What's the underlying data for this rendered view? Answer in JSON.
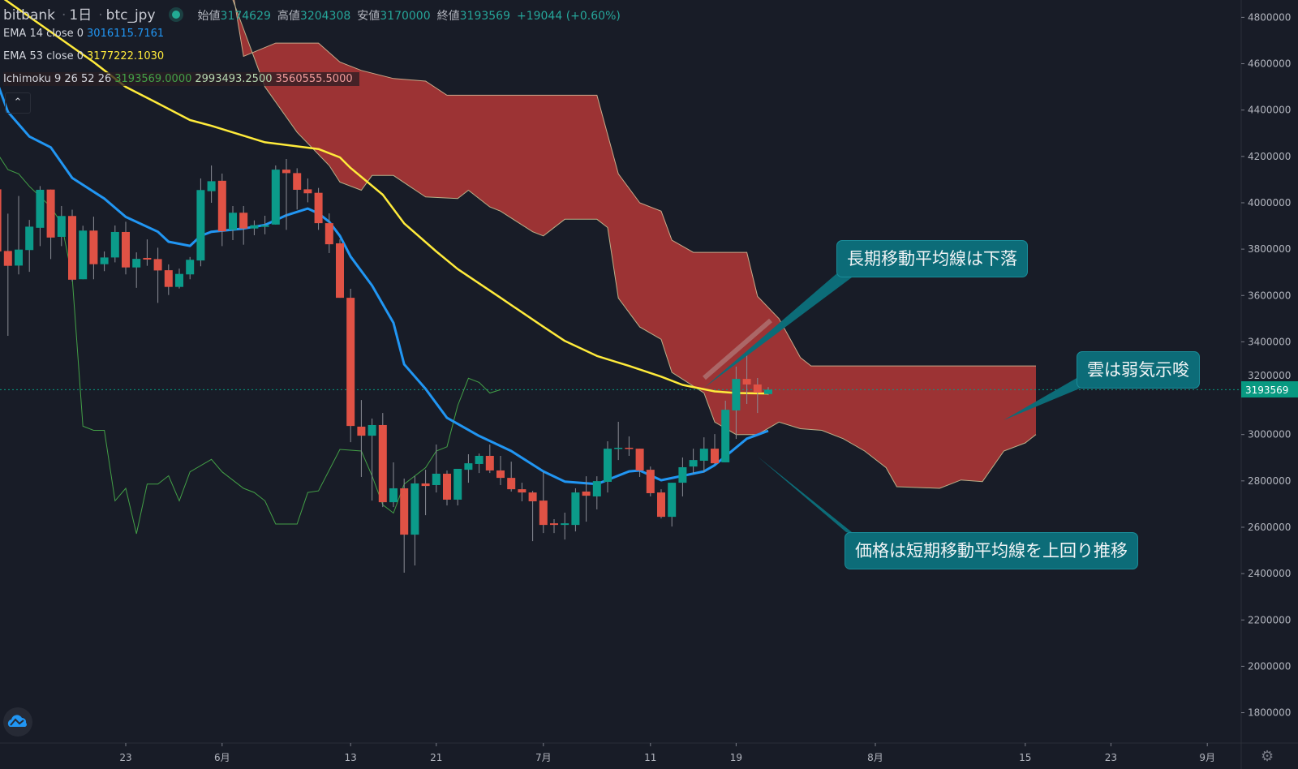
{
  "header": {
    "exchange": "bitbank",
    "interval": "1日",
    "symbol": "btc_jpy",
    "open_label": "始値",
    "open": "3174629",
    "high_label": "高値",
    "high": "3204308",
    "low_label": "安値",
    "low": "3170000",
    "close_label": "終値",
    "close": "3193569",
    "change": "+19044 (+0.60%)"
  },
  "indicators": {
    "ema14": {
      "label": "EMA 14 close 0",
      "value": "3016115.7161",
      "color": "#2196f3"
    },
    "ema53": {
      "label": "EMA 53 close 0",
      "value": "3177222.1030",
      "color": "#ffeb3b"
    },
    "ichimoku": {
      "label": "Ichimoku 9 26 52 26",
      "v1": "3193569.0000",
      "v2": "2993493.2500",
      "v3": "3560555.5000"
    }
  },
  "annotations": {
    "long_ma": "長期移動平均線は下落",
    "cloud": "雲は弱気示唆",
    "price": "価格は短期移動平均線を上回り推移"
  },
  "icons": {
    "collapse": "chevron-up-icon",
    "logo": "cloud-chart-logo-icon",
    "settings": "gear-icon"
  },
  "colors": {
    "background": "#181c27",
    "up": "#0b9b8a",
    "down": "#e05245",
    "cloud": "#a33535",
    "lagging": "#43a047",
    "last_price": "#089981",
    "callout": "#0c6c78"
  },
  "chart_data": {
    "type": "candlestick",
    "ylim": [
      1700000,
      4850000
    ],
    "price_ticks": [
      "4800000",
      "4600000",
      "4400000",
      "4200000",
      "4000000",
      "3800000",
      "3600000",
      "3400000",
      "3200000",
      "3000000",
      "2800000",
      "2600000",
      "2400000",
      "2200000",
      "2000000",
      "1800000"
    ],
    "time_ticks": [
      [
        "05-23",
        "23"
      ],
      [
        "06-01",
        "6月"
      ],
      [
        "06-13",
        "13"
      ],
      [
        "06-21",
        "21"
      ],
      [
        "07-01",
        "7月"
      ],
      [
        "07-11",
        "11"
      ],
      [
        "07-19",
        "19"
      ],
      [
        "08-01",
        "8月"
      ],
      [
        "08-15",
        "15"
      ],
      [
        "08-23",
        "23"
      ],
      [
        "09-01",
        "9月"
      ]
    ],
    "last_price": "3193569",
    "candles_columns": [
      "date",
      "open",
      "high",
      "low",
      "close"
    ],
    "candles": [
      [
        "05-11",
        4058000,
        4070000,
        3779000,
        3790000
      ],
      [
        "05-12",
        3792000,
        3953000,
        3426000,
        3728000
      ],
      [
        "05-13",
        3729000,
        4029000,
        3691000,
        3798000
      ],
      [
        "05-14",
        3796000,
        3926000,
        3702000,
        3897000
      ],
      [
        "05-15",
        3892000,
        4072000,
        3813000,
        4056000
      ],
      [
        "05-16",
        4057000,
        4057000,
        3757000,
        3850000
      ],
      [
        "05-17",
        3853000,
        3986000,
        3813000,
        3943000
      ],
      [
        "05-18",
        3943000,
        3970000,
        3661000,
        3668000
      ],
      [
        "05-19",
        3670000,
        3901000,
        3670000,
        3880000
      ],
      [
        "05-20",
        3880000,
        3940000,
        3670000,
        3735000
      ],
      [
        "05-21",
        3735000,
        3790000,
        3705000,
        3764000
      ],
      [
        "05-22",
        3764000,
        3902000,
        3743000,
        3874000
      ],
      [
        "05-23",
        3874000,
        3918000,
        3691000,
        3721000
      ],
      [
        "05-24",
        3721000,
        3786000,
        3633000,
        3758000
      ],
      [
        "05-25",
        3762000,
        3842000,
        3728000,
        3755000
      ],
      [
        "05-26",
        3757000,
        3806000,
        3568000,
        3708000
      ],
      [
        "05-27",
        3709000,
        3734000,
        3602000,
        3637000
      ],
      [
        "05-28",
        3637000,
        3716000,
        3630000,
        3693000
      ],
      [
        "05-29",
        3691000,
        3766000,
        3670000,
        3754000
      ],
      [
        "05-30",
        3751000,
        4105000,
        3726000,
        4055000
      ],
      [
        "05-31",
        4050000,
        4161000,
        4000000,
        4093000
      ],
      [
        "06-01",
        4095000,
        4126000,
        3813000,
        3877000
      ],
      [
        "06-02",
        3883000,
        3986000,
        3839000,
        3957000
      ],
      [
        "06-03",
        3957000,
        3986000,
        3819000,
        3889000
      ],
      [
        "06-04",
        3889000,
        3924000,
        3860000,
        3903000
      ],
      [
        "06-05",
        3896000,
        3944000,
        3864000,
        3903000
      ],
      [
        "06-06",
        3906000,
        4161000,
        3906000,
        4143000
      ],
      [
        "06-07",
        4143000,
        4189000,
        3883000,
        4128000
      ],
      [
        "06-08",
        4128000,
        4149000,
        3971000,
        4056000
      ],
      [
        "06-09",
        4058000,
        4105000,
        4002000,
        4041000
      ],
      [
        "06-10",
        4043000,
        4064000,
        3883000,
        3912000
      ],
      [
        "06-11",
        3912000,
        3954000,
        3783000,
        3821000
      ],
      [
        "06-12",
        3825000,
        3842000,
        3590000,
        3590000
      ],
      [
        "06-13",
        3590000,
        3629000,
        2967000,
        3037000
      ],
      [
        "06-14",
        3034000,
        3149000,
        2817000,
        2995000
      ],
      [
        "06-15",
        2995000,
        3069000,
        2715000,
        3041000
      ],
      [
        "06-16",
        3041000,
        3093000,
        2687000,
        2708000
      ],
      [
        "06-17",
        2708000,
        2880000,
        2687000,
        2768000
      ],
      [
        "06-18",
        2768000,
        2810000,
        2404000,
        2568000
      ],
      [
        "06-19",
        2568000,
        2820000,
        2435000,
        2789000
      ],
      [
        "06-20",
        2789000,
        2848000,
        2652000,
        2778000
      ],
      [
        "06-21",
        2782000,
        2957000,
        2750000,
        2831000
      ],
      [
        "06-22",
        2831000,
        2845000,
        2694000,
        2719000
      ],
      [
        "06-23",
        2719000,
        2852000,
        2694000,
        2852000
      ],
      [
        "06-24",
        2848000,
        2915000,
        2792000,
        2876000
      ],
      [
        "06-25",
        2873000,
        2918000,
        2834000,
        2908000
      ],
      [
        "06-26",
        2908000,
        2957000,
        2834000,
        2845000
      ],
      [
        "06-27",
        2845000,
        2908000,
        2782000,
        2813000
      ],
      [
        "06-28",
        2813000,
        2883000,
        2754000,
        2764000
      ],
      [
        "06-29",
        2764000,
        2792000,
        2712000,
        2750000
      ],
      [
        "06-30",
        2750000,
        2757000,
        2540000,
        2712000
      ],
      [
        "07-01",
        2715000,
        2838000,
        2575000,
        2610000
      ],
      [
        "07-02",
        2617000,
        2635000,
        2575000,
        2610000
      ],
      [
        "07-03",
        2610000,
        2663000,
        2547000,
        2617000
      ],
      [
        "07-04",
        2610000,
        2768000,
        2582000,
        2750000
      ],
      [
        "07-05",
        2754000,
        2820000,
        2624000,
        2736000
      ],
      [
        "07-06",
        2733000,
        2820000,
        2677000,
        2799000
      ],
      [
        "07-07",
        2796000,
        2971000,
        2750000,
        2939000
      ],
      [
        "07-08",
        2939000,
        3055000,
        2890000,
        2943000
      ],
      [
        "07-09",
        2943000,
        2992000,
        2908000,
        2939000
      ],
      [
        "07-10",
        2939000,
        2939000,
        2817000,
        2845000
      ],
      [
        "07-11",
        2848000,
        2862000,
        2733000,
        2747000
      ],
      [
        "07-12",
        2750000,
        2764000,
        2638000,
        2645000
      ],
      [
        "07-13",
        2645000,
        2792000,
        2603000,
        2792000
      ],
      [
        "07-14",
        2792000,
        2901000,
        2733000,
        2859000
      ],
      [
        "07-15",
        2862000,
        2939000,
        2831000,
        2890000
      ],
      [
        "07-16",
        2887000,
        2988000,
        2838000,
        2939000
      ],
      [
        "07-17",
        2939000,
        3002000,
        2873000,
        2876000
      ],
      [
        "07-18",
        2880000,
        3146000,
        2880000,
        3107000
      ],
      [
        "07-19",
        3104000,
        3293000,
        2981000,
        3240000
      ],
      [
        "07-20",
        3240000,
        3359000,
        3132000,
        3216000
      ],
      [
        "07-21",
        3216000,
        3244000,
        3093000,
        3181000
      ],
      [
        "07-22",
        3174629,
        3204308,
        3170000,
        3193569
      ]
    ],
    "ema14": [
      [
        "05-11",
        4518000
      ],
      [
        "05-12",
        4392000
      ],
      [
        "05-14",
        4286000
      ],
      [
        "05-16",
        4239000
      ],
      [
        "05-18",
        4107000
      ],
      [
        "05-21",
        4018000
      ],
      [
        "05-23",
        3939000
      ],
      [
        "05-26",
        3875000
      ],
      [
        "05-27",
        3832000
      ],
      [
        "05-29",
        3814000
      ],
      [
        "05-30",
        3857000
      ],
      [
        "05-31",
        3875000
      ],
      [
        "06-03",
        3889000
      ],
      [
        "06-05",
        3904000
      ],
      [
        "06-07",
        3946000
      ],
      [
        "06-09",
        3975000
      ],
      [
        "06-10",
        3954000
      ],
      [
        "06-11",
        3918000
      ],
      [
        "06-12",
        3857000
      ],
      [
        "06-13",
        3768000
      ],
      [
        "06-15",
        3643000
      ],
      [
        "06-17",
        3482000
      ],
      [
        "06-18",
        3303000
      ],
      [
        "06-20",
        3197000
      ],
      [
        "06-22",
        3072000
      ],
      [
        "06-25",
        2994000
      ],
      [
        "06-28",
        2929000
      ],
      [
        "07-01",
        2841000
      ],
      [
        "07-03",
        2797000
      ],
      [
        "07-06",
        2786000
      ],
      [
        "07-09",
        2841000
      ],
      [
        "07-10",
        2845000
      ],
      [
        "07-12",
        2803000
      ],
      [
        "07-16",
        2841000
      ],
      [
        "07-17",
        2868000
      ],
      [
        "07-20",
        2982000
      ],
      [
        "07-22",
        3016116
      ]
    ],
    "ema53": [
      [
        "05-11",
        4900000
      ],
      [
        "05-20",
        4607000
      ],
      [
        "05-23",
        4500000
      ],
      [
        "05-26",
        4429000
      ],
      [
        "05-29",
        4357000
      ],
      [
        "05-31",
        4332000
      ],
      [
        "06-05",
        4261000
      ],
      [
        "06-10",
        4232000
      ],
      [
        "06-12",
        4196000
      ],
      [
        "06-13",
        4150000
      ],
      [
        "06-16",
        4035000
      ],
      [
        "06-18",
        3911000
      ],
      [
        "06-21",
        3790000
      ],
      [
        "06-23",
        3714000
      ],
      [
        "06-27",
        3590000
      ],
      [
        "07-01",
        3465000
      ],
      [
        "07-03",
        3404000
      ],
      [
        "07-06",
        3339000
      ],
      [
        "07-09",
        3296000
      ],
      [
        "07-12",
        3250000
      ],
      [
        "07-14",
        3214000
      ],
      [
        "07-17",
        3186000
      ],
      [
        "07-19",
        3179000
      ],
      [
        "07-22",
        3177222
      ]
    ],
    "lagging_span": [
      [
        "05-11",
        4214000
      ],
      [
        "05-12",
        4143000
      ],
      [
        "05-13",
        4125000
      ],
      [
        "05-14",
        4071000
      ],
      [
        "05-16",
        3982000
      ],
      [
        "05-17",
        3911000
      ],
      [
        "05-18",
        3679000
      ],
      [
        "05-19",
        3036000
      ],
      [
        "05-20",
        3018000
      ],
      [
        "05-21",
        3018000
      ],
      [
        "05-22",
        2714000
      ],
      [
        "05-23",
        2768000
      ],
      [
        "05-24",
        2572000
      ],
      [
        "05-25",
        2786000
      ],
      [
        "05-26",
        2786000
      ],
      [
        "05-27",
        2822000
      ],
      [
        "05-28",
        2714000
      ],
      [
        "05-29",
        2839000
      ],
      [
        "05-31",
        2893000
      ],
      [
        "06-01",
        2839000
      ],
      [
        "06-03",
        2768000
      ],
      [
        "06-04",
        2750000
      ],
      [
        "06-05",
        2714000
      ],
      [
        "06-06",
        2614000
      ],
      [
        "06-08",
        2614000
      ],
      [
        "06-09",
        2750000
      ],
      [
        "06-10",
        2757000
      ],
      [
        "06-12",
        2936000
      ],
      [
        "06-14",
        2929000
      ],
      [
        "06-15",
        2822000
      ],
      [
        "06-16",
        2697000
      ],
      [
        "06-17",
        2661000
      ],
      [
        "06-18",
        2786000
      ],
      [
        "06-20",
        2857000
      ],
      [
        "06-21",
        2929000
      ],
      [
        "06-22",
        2947000
      ],
      [
        "06-23",
        3125000
      ],
      [
        "06-24",
        3243000
      ],
      [
        "06-25",
        3225000
      ],
      [
        "06-26",
        3179000
      ],
      [
        "06-27",
        3193569
      ]
    ],
    "senkou_b": [
      [
        "06-02",
        4911000
      ],
      [
        "06-03",
        4632000
      ],
      [
        "06-06",
        4689000
      ],
      [
        "06-10",
        4689000
      ],
      [
        "06-12",
        4607000
      ],
      [
        "06-14",
        4571000
      ],
      [
        "06-17",
        4536000
      ],
      [
        "06-20",
        4525000
      ],
      [
        "06-22",
        4464000
      ],
      [
        "07-06",
        4464000
      ],
      [
        "07-08",
        4125000
      ],
      [
        "07-10",
        4000000
      ],
      [
        "07-12",
        3964000
      ],
      [
        "07-13",
        3839000
      ],
      [
        "07-15",
        3786000
      ],
      [
        "07-20",
        3786000
      ],
      [
        "07-21",
        3596000
      ],
      [
        "07-23",
        3500000
      ],
      [
        "07-25",
        3332000
      ],
      [
        "07-26",
        3296000
      ],
      [
        "08-16",
        3296000
      ]
    ],
    "senkou_a": [
      [
        "06-02",
        4875000
      ],
      [
        "06-05",
        4500000
      ],
      [
        "06-08",
        4304000
      ],
      [
        "06-11",
        4161000
      ],
      [
        "06-12",
        4089000
      ],
      [
        "06-14",
        4054000
      ],
      [
        "06-15",
        4118000
      ],
      [
        "06-17",
        4118000
      ],
      [
        "06-20",
        4025000
      ],
      [
        "06-23",
        4018000
      ],
      [
        "06-24",
        4054000
      ],
      [
        "06-26",
        3982000
      ],
      [
        "06-27",
        3964000
      ],
      [
        "06-30",
        3875000
      ],
      [
        "07-01",
        3857000
      ],
      [
        "07-03",
        3929000
      ],
      [
        "07-06",
        3929000
      ],
      [
        "07-07",
        3893000
      ],
      [
        "07-08",
        3589000
      ],
      [
        "07-10",
        3464000
      ],
      [
        "07-12",
        3411000
      ],
      [
        "07-13",
        3268000
      ],
      [
        "07-16",
        3179000
      ],
      [
        "07-17",
        3054000
      ],
      [
        "07-19",
        3000000
      ],
      [
        "07-21",
        3000000
      ],
      [
        "07-23",
        3054000
      ],
      [
        "07-25",
        3025000
      ],
      [
        "07-27",
        3018000
      ],
      [
        "07-29",
        2982000
      ],
      [
        "07-31",
        2929000
      ],
      [
        "08-02",
        2857000
      ],
      [
        "08-03",
        2775000
      ],
      [
        "08-07",
        2768000
      ],
      [
        "08-09",
        2804000
      ],
      [
        "08-11",
        2797000
      ],
      [
        "08-13",
        2929000
      ],
      [
        "08-15",
        2964000
      ],
      [
        "08-16",
        3000000
      ]
    ]
  }
}
